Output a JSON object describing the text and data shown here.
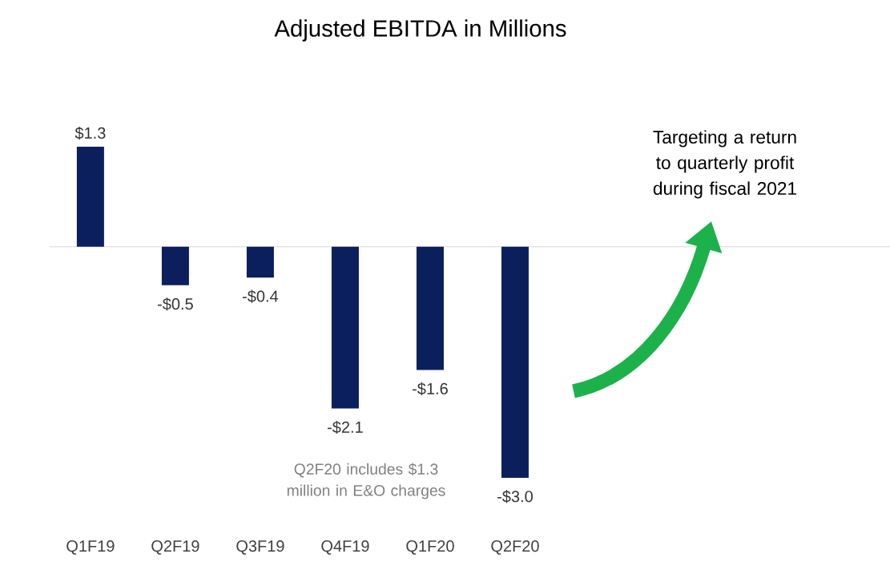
{
  "chart_data": {
    "type": "bar",
    "title": "Adjusted EBITDA in Millions",
    "categories": [
      "Q1F19",
      "Q2F19",
      "Q3F19",
      "Q4F19",
      "Q1F20",
      "Q2F20"
    ],
    "values": [
      1.3,
      -0.5,
      -0.4,
      -2.1,
      -1.6,
      -3.0
    ],
    "value_labels": [
      "$1.3",
      "-$0.5",
      "-$0.4",
      "-$2.1",
      "-$1.6",
      "-$3.0"
    ],
    "color": "#0b1f5c",
    "tick_labels": "x",
    "annotations": [
      "Q2F20 includes $1.3 million in E&O charges",
      "Targeting a return to quarterly profit during fiscal 2021"
    ]
  }
}
